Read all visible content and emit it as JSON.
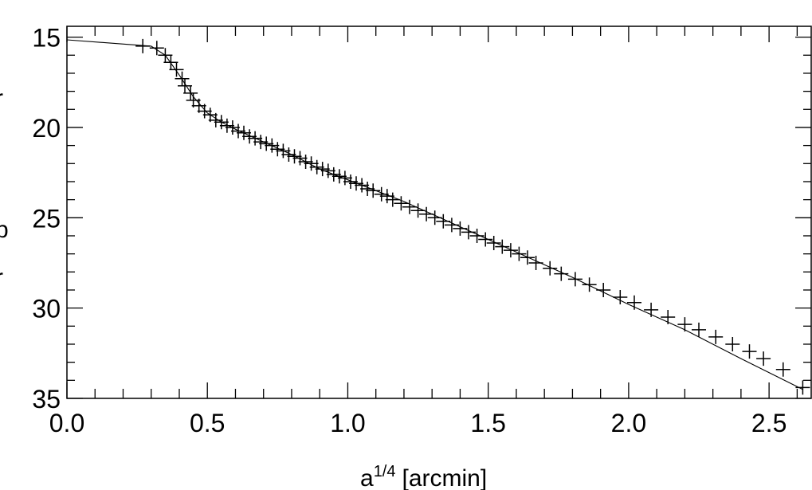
{
  "chart_data": {
    "type": "line",
    "xlabel": "a",
    "xlabel_sup": "1/4",
    "xlabel_unit": "[arcmin]",
    "ylabel_fragments": [
      "r",
      "b",
      "r"
    ],
    "xlim": [
      0.0,
      2.65
    ],
    "ylim": [
      35,
      14.4
    ],
    "y_inverted": true,
    "x_ticks": [
      "0.0",
      "0.5",
      "1.0",
      "1.5",
      "2.0",
      "2.5"
    ],
    "x_tick_values": [
      0.0,
      0.5,
      1.0,
      1.5,
      2.0,
      2.5
    ],
    "y_ticks": [
      "15",
      "20",
      "25",
      "30",
      "35"
    ],
    "y_tick_values": [
      15,
      20,
      25,
      30,
      35
    ],
    "grid": false,
    "series": [
      {
        "style": "markers",
        "marker": "plus",
        "x": [
          0.27,
          0.32,
          0.35,
          0.37,
          0.39,
          0.41,
          0.42,
          0.44,
          0.45,
          0.47,
          0.49,
          0.51,
          0.53,
          0.55,
          0.57,
          0.59,
          0.61,
          0.63,
          0.65,
          0.67,
          0.69,
          0.71,
          0.73,
          0.75,
          0.77,
          0.79,
          0.81,
          0.83,
          0.85,
          0.87,
          0.89,
          0.91,
          0.93,
          0.95,
          0.97,
          0.99,
          1.01,
          1.03,
          1.05,
          1.07,
          1.09,
          1.12,
          1.14,
          1.16,
          1.19,
          1.22,
          1.25,
          1.28,
          1.31,
          1.34,
          1.37,
          1.4,
          1.43,
          1.46,
          1.49,
          1.52,
          1.55,
          1.58,
          1.61,
          1.64,
          1.67,
          1.72,
          1.76,
          1.81,
          1.86,
          1.91,
          1.97,
          2.02,
          2.08,
          2.14,
          2.2,
          2.25,
          2.31,
          2.37,
          2.43,
          2.48,
          2.55,
          2.62
        ],
        "y": [
          15.5,
          15.6,
          16.0,
          16.4,
          16.8,
          17.3,
          17.7,
          18.1,
          18.5,
          18.8,
          19.1,
          19.3,
          19.6,
          19.7,
          19.9,
          20.0,
          20.2,
          20.3,
          20.5,
          20.6,
          20.8,
          20.9,
          21.0,
          21.2,
          21.3,
          21.5,
          21.6,
          21.7,
          21.9,
          22.0,
          22.2,
          22.3,
          22.4,
          22.6,
          22.7,
          22.8,
          23.0,
          23.1,
          23.2,
          23.4,
          23.5,
          23.7,
          23.8,
          24.0,
          24.2,
          24.4,
          24.6,
          24.8,
          25.0,
          25.2,
          25.4,
          25.6,
          25.8,
          26.0,
          26.2,
          26.4,
          26.6,
          26.8,
          27.0,
          27.2,
          27.5,
          27.8,
          28.1,
          28.4,
          28.7,
          29.0,
          29.4,
          29.7,
          30.1,
          30.5,
          30.9,
          31.2,
          31.6,
          32.0,
          32.4,
          32.8,
          33.4,
          34.4
        ]
      },
      {
        "style": "line",
        "x": [
          0.0,
          0.3,
          0.35,
          0.4,
          0.45,
          0.5,
          0.55,
          0.6,
          0.7,
          0.8,
          0.9,
          1.0,
          1.2,
          1.4,
          1.6,
          1.8,
          2.0,
          2.2,
          2.4,
          2.62
        ],
        "y": [
          15.15,
          15.5,
          16.0,
          17.1,
          18.3,
          19.2,
          19.7,
          20.1,
          20.8,
          21.5,
          22.3,
          22.9,
          24.1,
          25.5,
          26.9,
          28.3,
          29.8,
          31.2,
          32.8,
          34.5
        ]
      }
    ]
  }
}
